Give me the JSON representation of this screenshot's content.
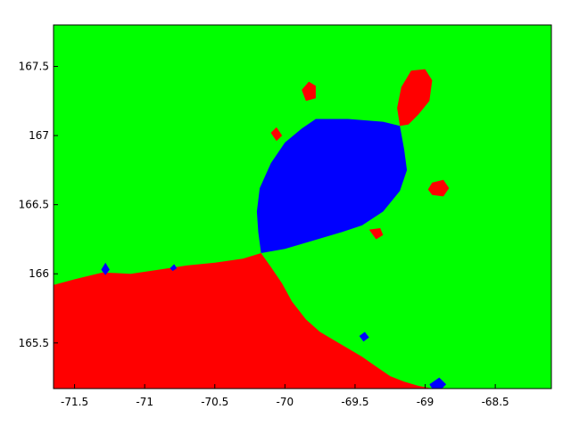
{
  "chart_data": {
    "type": "heatmap",
    "title": "",
    "xlabel": "",
    "ylabel": "",
    "xlim": [
      -71.65,
      -68.1
    ],
    "ylim": [
      165.17,
      167.8
    ],
    "x_ticks": [
      -71.5,
      -71,
      -70.5,
      -70,
      -69.5,
      -69,
      -68.5
    ],
    "x_tick_labels": [
      "-71.5",
      "-71",
      "-70.5",
      "-70",
      "-69.5",
      "-69",
      "-68.5"
    ],
    "y_ticks": [
      165.5,
      166,
      166.5,
      167,
      167.5
    ],
    "y_tick_labels": [
      "165.5",
      "166",
      "166.5",
      "167",
      "167.5"
    ],
    "grid": false,
    "colors": {
      "background_region": "#00ff00",
      "red_region": "#ff0000",
      "blue_region": "#0000ff",
      "axes_frame": "#000000"
    },
    "regions": [
      {
        "name": "red-basin",
        "color": "#ff0000",
        "points": [
          [
            -71.65,
            165.92
          ],
          [
            -71.5,
            165.96
          ],
          [
            -71.3,
            166.01
          ],
          [
            -71.1,
            166.0
          ],
          [
            -70.9,
            166.03
          ],
          [
            -70.7,
            166.06
          ],
          [
            -70.5,
            166.08
          ],
          [
            -70.3,
            166.11
          ],
          [
            -70.17,
            166.15
          ],
          [
            -70.1,
            166.05
          ],
          [
            -70.02,
            165.93
          ],
          [
            -69.95,
            165.8
          ],
          [
            -69.85,
            165.67
          ],
          [
            -69.75,
            165.58
          ],
          [
            -69.65,
            165.52
          ],
          [
            -69.55,
            165.46
          ],
          [
            -69.45,
            165.4
          ],
          [
            -69.35,
            165.33
          ],
          [
            -69.25,
            165.26
          ],
          [
            -69.15,
            165.22
          ],
          [
            -69.05,
            165.19
          ],
          [
            -68.95,
            165.17
          ],
          [
            -71.65,
            165.17
          ]
        ]
      },
      {
        "name": "blue-basin",
        "color": "#0000ff",
        "points": [
          [
            -70.17,
            166.15
          ],
          [
            -70.19,
            166.3
          ],
          [
            -70.2,
            166.45
          ],
          [
            -70.18,
            166.62
          ],
          [
            -70.1,
            166.8
          ],
          [
            -70.0,
            166.95
          ],
          [
            -69.88,
            167.05
          ],
          [
            -69.78,
            167.12
          ],
          [
            -69.55,
            167.12
          ],
          [
            -69.3,
            167.1
          ],
          [
            -69.18,
            167.07
          ],
          [
            -69.15,
            166.9
          ],
          [
            -69.13,
            166.75
          ],
          [
            -69.18,
            166.6
          ],
          [
            -69.3,
            166.45
          ],
          [
            -69.45,
            166.35
          ],
          [
            -69.6,
            166.3
          ],
          [
            -69.8,
            166.24
          ],
          [
            -70.0,
            166.18
          ]
        ]
      },
      {
        "name": "red-bulb-top-right",
        "color": "#ff0000",
        "points": [
          [
            -69.18,
            167.07
          ],
          [
            -69.2,
            167.2
          ],
          [
            -69.17,
            167.35
          ],
          [
            -69.1,
            167.47
          ],
          [
            -69.0,
            167.48
          ],
          [
            -68.95,
            167.4
          ],
          [
            -68.97,
            167.25
          ],
          [
            -69.05,
            167.15
          ],
          [
            -69.12,
            167.08
          ]
        ]
      },
      {
        "name": "red-bulb-top",
        "color": "#ff0000",
        "points": [
          [
            -69.85,
            167.25
          ],
          [
            -69.88,
            167.33
          ],
          [
            -69.83,
            167.39
          ],
          [
            -69.78,
            167.36
          ],
          [
            -69.78,
            167.27
          ]
        ]
      },
      {
        "name": "red-bulb-right",
        "color": "#ff0000",
        "points": [
          [
            -68.95,
            166.66
          ],
          [
            -68.87,
            166.68
          ],
          [
            -68.83,
            166.62
          ],
          [
            -68.87,
            166.56
          ],
          [
            -68.95,
            166.57
          ],
          [
            -68.98,
            166.61
          ]
        ]
      },
      {
        "name": "red-bulb-left",
        "color": "#ff0000",
        "points": [
          [
            -70.1,
            167.02
          ],
          [
            -70.06,
            167.06
          ],
          [
            -70.02,
            167.0
          ],
          [
            -70.06,
            166.96
          ]
        ]
      },
      {
        "name": "red-bulb-lower-right",
        "color": "#ff0000",
        "points": [
          [
            -69.4,
            166.32
          ],
          [
            -69.32,
            166.33
          ],
          [
            -69.3,
            166.28
          ],
          [
            -69.35,
            166.25
          ]
        ]
      },
      {
        "name": "blue-bulb-bottom",
        "color": "#0000ff",
        "points": [
          [
            -68.97,
            165.2
          ],
          [
            -68.9,
            165.25
          ],
          [
            -68.85,
            165.2
          ],
          [
            -68.88,
            165.17
          ],
          [
            -68.95,
            165.17
          ]
        ]
      },
      {
        "name": "blue-bulb-left",
        "color": "#0000ff",
        "points": [
          [
            -71.31,
            166.03
          ],
          [
            -71.28,
            166.08
          ],
          [
            -71.25,
            166.03
          ],
          [
            -71.28,
            165.99
          ]
        ]
      },
      {
        "name": "blue-bulb-lower",
        "color": "#0000ff",
        "points": [
          [
            -69.47,
            165.55
          ],
          [
            -69.43,
            165.58
          ],
          [
            -69.4,
            165.54
          ],
          [
            -69.44,
            165.51
          ]
        ]
      },
      {
        "name": "blue-dot-left",
        "color": "#0000ff",
        "points": [
          [
            -70.82,
            166.04
          ],
          [
            -70.79,
            166.07
          ],
          [
            -70.77,
            166.04
          ],
          [
            -70.8,
            166.02
          ]
        ]
      }
    ]
  }
}
